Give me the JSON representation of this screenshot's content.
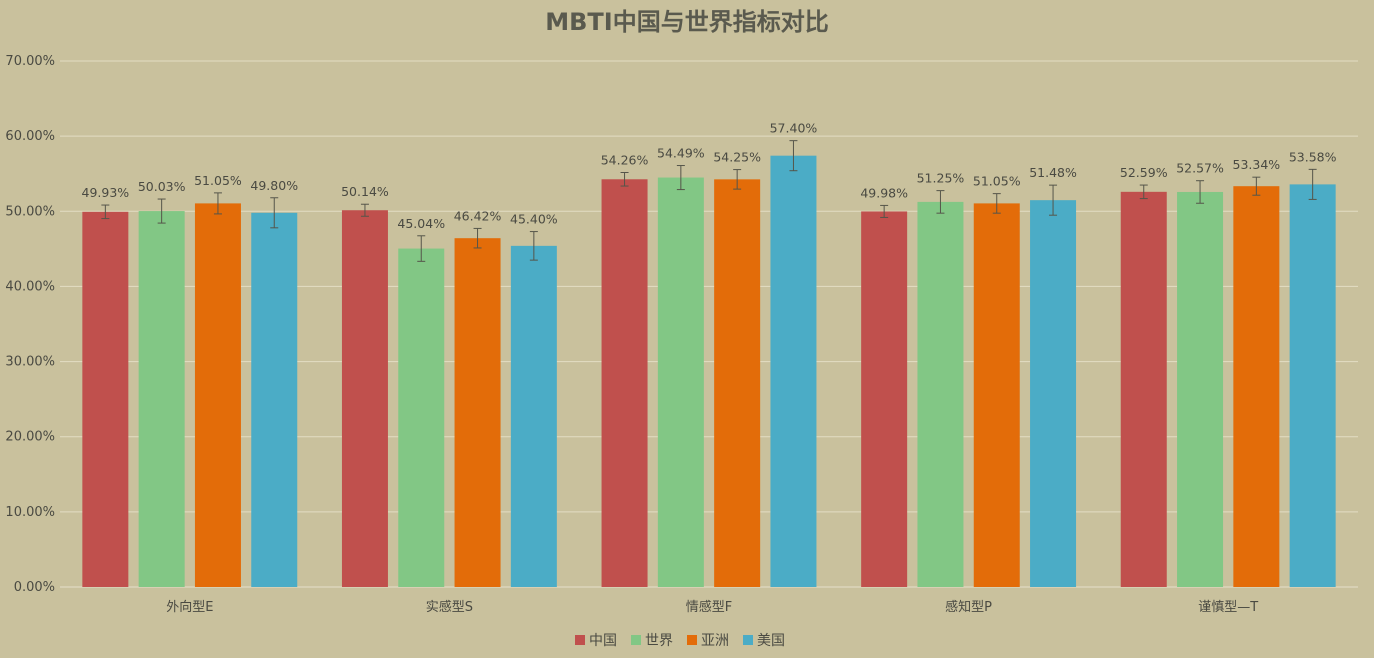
{
  "chart_data": {
    "type": "bar",
    "title": "MBTI中国与世界指标对比",
    "categories": [
      "外向型E",
      "实感型S",
      "情感型F",
      "感知型P",
      "谨慎型—T"
    ],
    "series": [
      {
        "name": "中国",
        "color": "#c0504d",
        "values": [
          49.93,
          50.14,
          54.26,
          49.98,
          52.59
        ],
        "labels": [
          "49.93%",
          "50.14%",
          "54.26%",
          "49.98%",
          "52.59%"
        ],
        "errors": [
          0.9,
          0.8,
          0.9,
          0.8,
          0.9
        ]
      },
      {
        "name": "世界",
        "color": "#82c785",
        "values": [
          50.03,
          45.04,
          54.49,
          51.25,
          52.57
        ],
        "labels": [
          "50.03%",
          "45.04%",
          "54.49%",
          "51.25%",
          "52.57%"
        ],
        "errors": [
          1.6,
          1.7,
          1.6,
          1.5,
          1.5
        ]
      },
      {
        "name": "亚洲",
        "color": "#e36c09",
        "values": [
          51.05,
          46.42,
          54.25,
          51.05,
          53.34
        ],
        "labels": [
          "51.05%",
          "46.42%",
          "54.25%",
          "51.05%",
          "53.34%"
        ],
        "errors": [
          1.4,
          1.3,
          1.3,
          1.3,
          1.2
        ]
      },
      {
        "name": "美国",
        "color": "#4bacc6",
        "values": [
          49.8,
          45.4,
          57.4,
          51.48,
          53.58
        ],
        "labels": [
          "49.80%",
          "45.40%",
          "57.40%",
          "51.48%",
          "53.58%"
        ],
        "errors": [
          2.0,
          1.9,
          2.0,
          2.0,
          2.0
        ]
      }
    ],
    "ylim": [
      0,
      70
    ],
    "yticks": [
      "0.00%",
      "10.00%",
      "20.00%",
      "30.00%",
      "40.00%",
      "50.00%",
      "60.00%",
      "70.00%"
    ],
    "grid": true,
    "legend_position": "bottom"
  }
}
